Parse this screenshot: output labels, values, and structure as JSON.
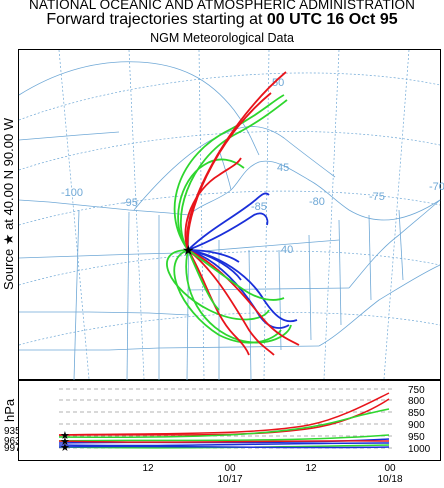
{
  "header": {
    "agency": "NATIONAL OCEANIC AND ATMOSPHERIC ADMINISTRATION",
    "title_prefix": "Forward trajectories starting at ",
    "title_time": "00 UTC 16 Oct 95",
    "dataset": "NGM  Meteorological Data"
  },
  "source_label": "Source ★ at   40.00 N   90.00 W",
  "map": {
    "longitude_labels": [
      "-100",
      "-95",
      "-85",
      "-80",
      "-75",
      "-70"
    ],
    "latitude_labels": [
      "50",
      "45",
      "40"
    ],
    "colors": {
      "trajectory_red": "#e8141b",
      "trajectory_blue": "#1a2fd9",
      "trajectory_green": "#2ed62e",
      "grid": "#6fa8d6",
      "boundary": "#6fa8d6"
    }
  },
  "profile": {
    "axis_label": "hPa",
    "pressure_levels": [
      "750",
      "800",
      "850",
      "900",
      "950",
      "1000"
    ],
    "start_levels": [
      "935",
      "963",
      "997"
    ],
    "time_ticks": [
      {
        "main": "12",
        "sub": ""
      },
      {
        "main": "00",
        "sub": "10/17"
      },
      {
        "main": "12",
        "sub": ""
      },
      {
        "main": "00",
        "sub": "10/18"
      }
    ]
  }
}
